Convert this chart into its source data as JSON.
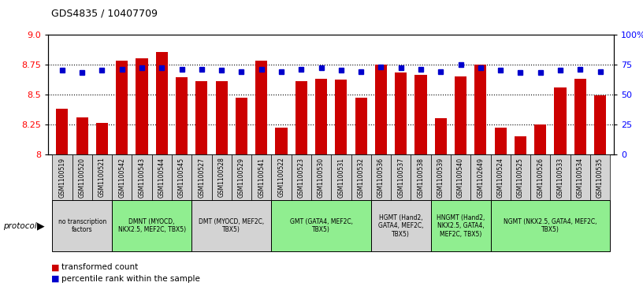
{
  "title": "GDS4835 / 10407709",
  "samples": [
    "GSM1100519",
    "GSM1100520",
    "GSM1100521",
    "GSM1100542",
    "GSM1100543",
    "GSM1100544",
    "GSM1100545",
    "GSM1100527",
    "GSM1100528",
    "GSM1100529",
    "GSM1100541",
    "GSM1100522",
    "GSM1100523",
    "GSM1100530",
    "GSM1100531",
    "GSM1100532",
    "GSM1100536",
    "GSM1100537",
    "GSM1100538",
    "GSM1100539",
    "GSM1100540",
    "GSM1102649",
    "GSM1100524",
    "GSM1100525",
    "GSM1100526",
    "GSM1100533",
    "GSM1100534",
    "GSM1100535"
  ],
  "red_values": [
    8.38,
    8.31,
    8.26,
    8.78,
    8.8,
    8.85,
    8.64,
    8.61,
    8.61,
    8.47,
    8.78,
    8.22,
    8.61,
    8.63,
    8.62,
    8.47,
    8.75,
    8.68,
    8.66,
    8.3,
    8.65,
    8.75,
    8.22,
    8.15,
    8.25,
    8.56,
    8.63,
    8.49
  ],
  "blue_values": [
    70,
    68,
    70,
    71,
    72,
    72,
    71,
    71,
    70,
    69,
    71,
    69,
    71,
    72,
    70,
    69,
    73,
    72,
    71,
    69,
    75,
    72,
    70,
    68,
    68,
    70,
    71,
    69
  ],
  "groups": [
    {
      "label": "no transcription\nfactors",
      "start": 0,
      "end": 3,
      "color": "#d3d3d3"
    },
    {
      "label": "DMNT (MYOCD,\nNKX2.5, MEF2C, TBX5)",
      "start": 3,
      "end": 7,
      "color": "#90ee90"
    },
    {
      "label": "DMT (MYOCD, MEF2C,\nTBX5)",
      "start": 7,
      "end": 11,
      "color": "#d3d3d3"
    },
    {
      "label": "GMT (GATA4, MEF2C,\nTBX5)",
      "start": 11,
      "end": 16,
      "color": "#90ee90"
    },
    {
      "label": "HGMT (Hand2,\nGATA4, MEF2C,\nTBX5)",
      "start": 16,
      "end": 19,
      "color": "#d3d3d3"
    },
    {
      "label": "HNGMT (Hand2,\nNKX2.5, GATA4,\nMEF2C, TBX5)",
      "start": 19,
      "end": 22,
      "color": "#90ee90"
    },
    {
      "label": "NGMT (NKX2.5, GATA4, MEF2C,\nTBX5)",
      "start": 22,
      "end": 28,
      "color": "#90ee90"
    }
  ],
  "ylim_left": [
    8.0,
    9.0
  ],
  "ylim_right": [
    0,
    100
  ],
  "yticks_left": [
    8.0,
    8.25,
    8.5,
    8.75,
    9.0
  ],
  "yticks_right": [
    0,
    25,
    50,
    75,
    100
  ],
  "grid_lines": [
    8.25,
    8.5,
    8.75
  ],
  "bar_color": "#cc0000",
  "dot_color": "#0000cc",
  "sample_box_color": "#d3d3d3",
  "background_color": "#ffffff"
}
